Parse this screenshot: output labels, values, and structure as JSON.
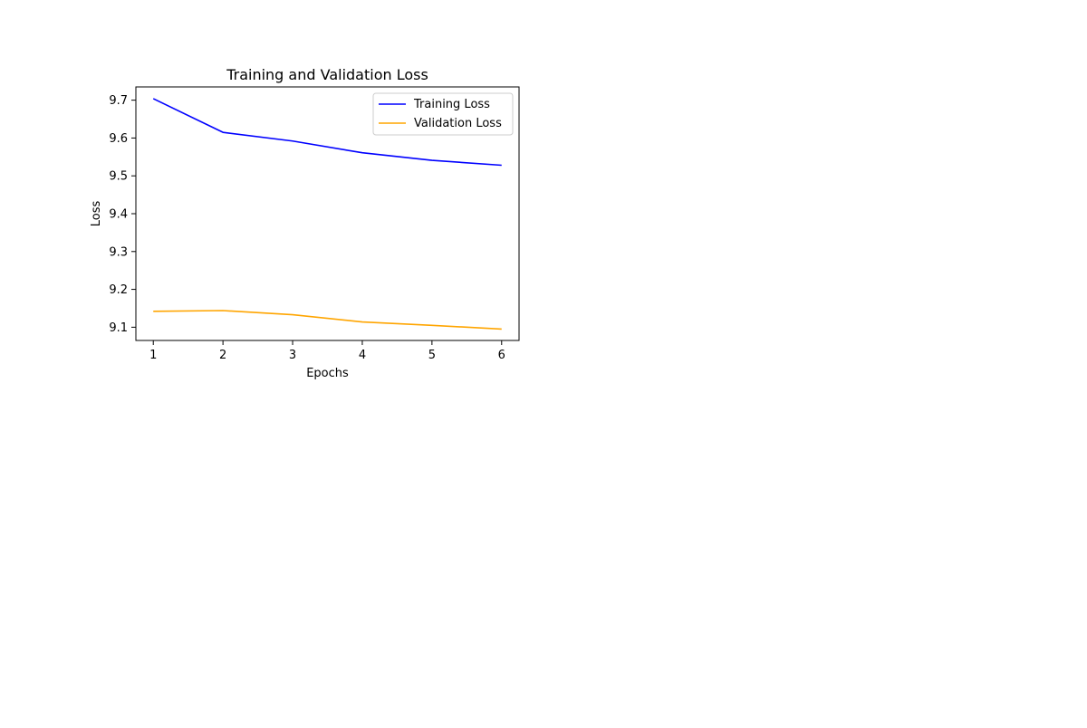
{
  "chart_data": {
    "type": "line",
    "title": "Training and Validation Loss",
    "xlabel": "Epochs",
    "ylabel": "Loss",
    "x": [
      1,
      2,
      3,
      4,
      5,
      6
    ],
    "xticks": [
      "1",
      "2",
      "3",
      "4",
      "5",
      "6"
    ],
    "yticks": [
      "9.1",
      "9.2",
      "9.3",
      "9.4",
      "9.5",
      "9.6",
      "9.7"
    ],
    "xlim": [
      0.75,
      6.25
    ],
    "ylim": [
      9.065,
      9.735
    ],
    "grid": false,
    "legend_position": "top-right",
    "series": [
      {
        "name": "Training Loss",
        "color": "#0000ff",
        "values": [
          9.704,
          9.615,
          9.592,
          9.561,
          9.541,
          9.528
        ]
      },
      {
        "name": "Validation Loss",
        "color": "#ffa500",
        "values": [
          9.142,
          9.144,
          9.133,
          9.114,
          9.105,
          9.095
        ]
      }
    ]
  }
}
